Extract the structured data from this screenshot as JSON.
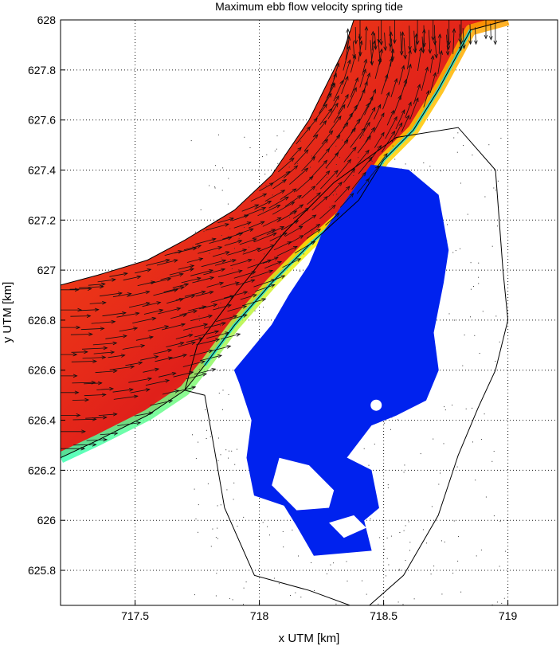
{
  "chart_data": {
    "type": "vector-field",
    "title": "Maximum ebb flow velocity spring tide",
    "xlabel": "x UTM [km]",
    "ylabel": "y UTM [km]",
    "xlim": [
      717.2,
      719.2
    ],
    "ylim": [
      625.66,
      628.0
    ],
    "xticks": [
      "717.5",
      "718",
      "718.5",
      "719"
    ],
    "yticks": [
      "625.8",
      "626",
      "626.2",
      "626.4",
      "626.6",
      "626.8",
      "627",
      "627.2",
      "627.4",
      "627.6",
      "627.8",
      "628"
    ],
    "grid": true,
    "channel_boundary_left": [
      [
        717.2,
        626.94
      ],
      [
        717.35,
        626.98
      ],
      [
        717.55,
        627.04
      ],
      [
        717.7,
        627.12
      ],
      [
        717.9,
        627.24
      ],
      [
        718.05,
        627.38
      ],
      [
        718.2,
        627.6
      ],
      [
        718.26,
        627.72
      ],
      [
        718.34,
        627.88
      ],
      [
        718.38,
        628.0
      ]
    ],
    "channel_boundary_right": [
      [
        719.0,
        628.0
      ],
      [
        718.85,
        627.96
      ],
      [
        718.72,
        627.72
      ],
      [
        718.62,
        627.56
      ],
      [
        718.5,
        627.44
      ],
      [
        718.4,
        627.28
      ],
      [
        718.2,
        627.1
      ],
      [
        718.05,
        626.95
      ],
      [
        717.9,
        626.78
      ],
      [
        717.78,
        626.62
      ],
      [
        717.7,
        626.52
      ],
      [
        717.55,
        626.42
      ],
      [
        717.35,
        626.32
      ],
      [
        717.2,
        626.25
      ]
    ],
    "island_outline": [
      [
        718.55,
        627.53
      ],
      [
        718.8,
        627.57
      ],
      [
        718.95,
        627.4
      ],
      [
        718.98,
        627.0
      ],
      [
        719.0,
        626.8
      ],
      [
        718.95,
        626.6
      ],
      [
        718.88,
        626.45
      ],
      [
        718.8,
        626.26
      ],
      [
        718.72,
        626.02
      ],
      [
        718.58,
        625.78
      ],
      [
        718.42,
        625.64
      ],
      [
        718.2,
        625.72
      ],
      [
        717.98,
        625.78
      ],
      [
        717.86,
        626.05
      ],
      [
        717.82,
        626.28
      ],
      [
        717.78,
        626.5
      ],
      [
        717.7,
        626.52
      ],
      [
        717.75,
        626.7
      ],
      [
        717.9,
        626.9
      ],
      [
        718.1,
        627.15
      ],
      [
        718.3,
        627.35
      ],
      [
        718.55,
        627.53
      ]
    ],
    "water_body": [
      [
        718.45,
        627.42
      ],
      [
        718.6,
        627.4
      ],
      [
        718.72,
        627.3
      ],
      [
        718.76,
        627.08
      ],
      [
        718.74,
        626.95
      ],
      [
        718.7,
        626.75
      ],
      [
        718.72,
        626.6
      ],
      [
        718.67,
        626.48
      ],
      [
        718.55,
        626.42
      ],
      [
        718.45,
        626.38
      ],
      [
        718.35,
        626.25
      ],
      [
        718.45,
        626.2
      ],
      [
        718.48,
        626.05
      ],
      [
        718.42,
        626.0
      ],
      [
        718.45,
        625.88
      ],
      [
        718.22,
        625.86
      ],
      [
        718.15,
        625.98
      ],
      [
        718.1,
        626.06
      ],
      [
        717.98,
        626.1
      ],
      [
        717.95,
        626.25
      ],
      [
        717.97,
        626.4
      ],
      [
        717.92,
        626.55
      ],
      [
        717.9,
        626.6
      ],
      [
        717.95,
        626.66
      ],
      [
        718.05,
        626.78
      ],
      [
        718.12,
        626.9
      ],
      [
        718.2,
        627.02
      ],
      [
        718.25,
        627.14
      ],
      [
        718.35,
        627.28
      ],
      [
        718.45,
        627.42
      ]
    ],
    "velocity_colormap": [
      "#1a3cff",
      "#11c8ff",
      "#3dffb0",
      "#b8ff3a",
      "#ffee00",
      "#ffa200",
      "#ff5a14",
      "#e0201a"
    ]
  }
}
